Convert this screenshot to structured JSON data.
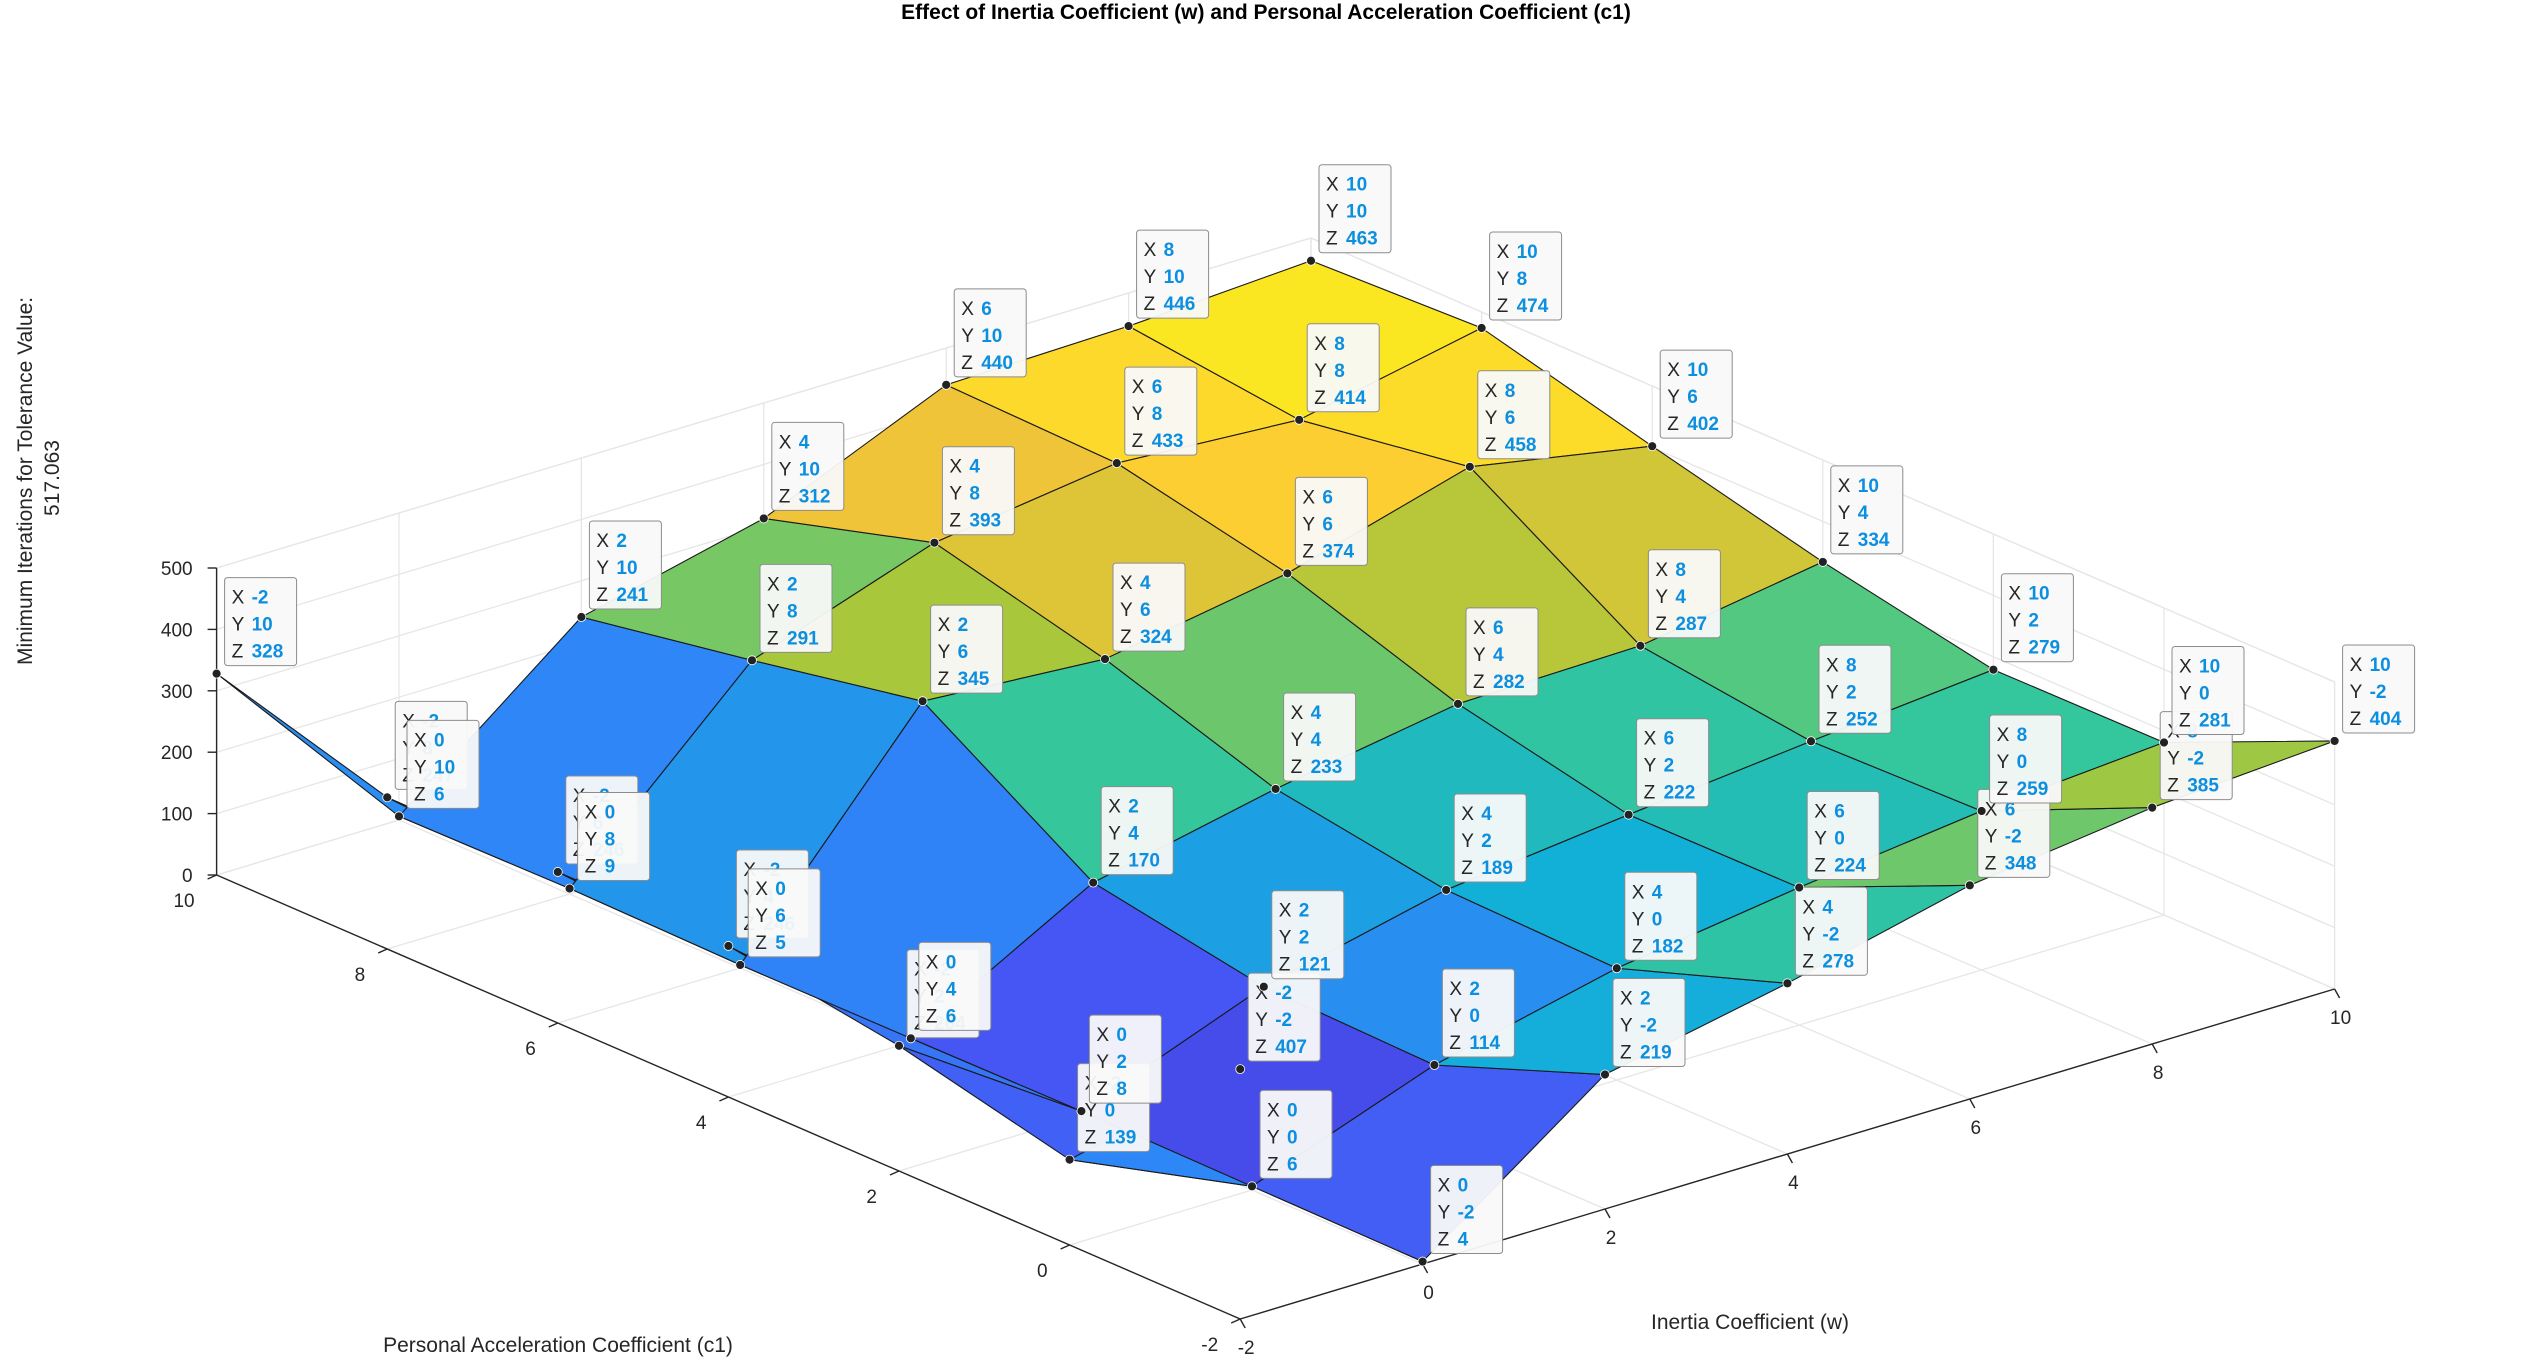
{
  "chart_data": {
    "type": "surface",
    "title": "Effect of Inertia Coefficient (w) and Personal Acceleration Coefficient (c1)",
    "xlabel": "Inertia Coefficient (w)",
    "ylabel": "Personal Acceleration Coefficient (c1)",
    "zlabel": "Minimum Iterations for Tolerance Value: 517.063",
    "x": [
      -2,
      0,
      2,
      4,
      6,
      8,
      10
    ],
    "y": [
      -2,
      0,
      2,
      4,
      6,
      8,
      10
    ],
    "z": [
      [
        407,
        139,
        204,
        246,
        246,
        247,
        328
      ],
      [
        4,
        6,
        8,
        6,
        5,
        9,
        6
      ],
      [
        219,
        114,
        121,
        170,
        345,
        291,
        241
      ],
      [
        278,
        182,
        189,
        233,
        324,
        393,
        312
      ],
      [
        348,
        224,
        222,
        282,
        374,
        433,
        440
      ],
      [
        385,
        259,
        252,
        287,
        458,
        414,
        446
      ],
      [
        404,
        281,
        279,
        334,
        402,
        474,
        463
      ]
    ],
    "xlim": [
      -2,
      10
    ],
    "ylim": [
      -2,
      10
    ],
    "zlim": [
      0,
      500
    ],
    "xticks": [
      "-2",
      "0",
      "2",
      "4",
      "6",
      "8",
      "10"
    ],
    "yticks": [
      "-2",
      "0",
      "2",
      "4",
      "6",
      "8",
      "10"
    ],
    "zticks": [
      "0",
      "100",
      "200",
      "300",
      "400",
      "500"
    ],
    "colormap": "parula",
    "grid": true,
    "datatips": true,
    "tip_keys": [
      "X",
      "Y",
      "Z"
    ]
  },
  "colors": {
    "tip_value": "#0d8fe0",
    "tip_border": "#8c8c8c",
    "grid": "#e6e6e6",
    "axis": "#262626"
  }
}
